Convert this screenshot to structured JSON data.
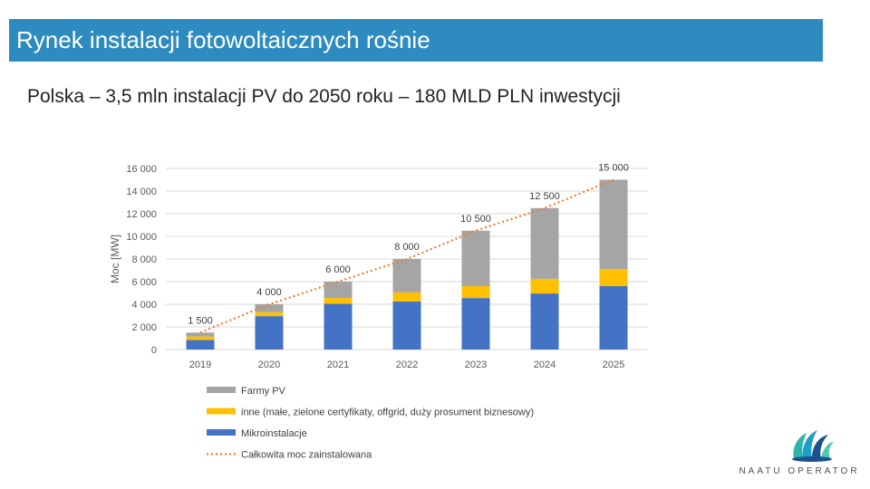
{
  "slide": {
    "title": "Rynek instalacji fotowoltaicznych rośnie",
    "subtitle": "Polska – 3,5 mln instalacji PV do 2050 roku – 180 MLD PLN inwestycji"
  },
  "logo": {
    "text": "NAATU OPERATOR",
    "icon": "feather-headdress-icon"
  },
  "colors": {
    "title_bg": "#2e8bc0",
    "farmy": "#a5a5a5",
    "inne": "#ffc000",
    "mikro": "#4472c4",
    "line": "#ed7d31",
    "grid": "#d9d9d9"
  },
  "chart_data": {
    "type": "bar",
    "stacked": true,
    "categories": [
      "2019",
      "2020",
      "2021",
      "2022",
      "2023",
      "2024",
      "2025"
    ],
    "series": [
      {
        "name": "Mikroinstalacje",
        "key": "mikro",
        "values": [
          850,
          2950,
          4050,
          4250,
          4550,
          4950,
          5600
        ]
      },
      {
        "name": "inne (małe, zielone certyfikaty, offgrid, duży prosument biznesowy)",
        "key": "inne",
        "values": [
          300,
          350,
          500,
          800,
          1050,
          1300,
          1500
        ]
      },
      {
        "name": "Farmy PV",
        "key": "farmy",
        "values": [
          350,
          700,
          1450,
          2950,
          4900,
          6250,
          7900
        ]
      }
    ],
    "line": {
      "name": "Całkowita moc zainstalowana",
      "values": [
        1500,
        4000,
        6000,
        8000,
        10500,
        12500,
        15000
      ]
    },
    "data_labels": [
      "1 500",
      "4 000",
      "6 000",
      "8 000",
      "10 500",
      "12 500",
      "15 000"
    ],
    "ylabel": "Moc [MW]",
    "ylim": [
      0,
      16000
    ],
    "yticks": [
      0,
      2000,
      4000,
      6000,
      8000,
      10000,
      12000,
      14000,
      16000
    ],
    "ytick_labels": [
      "0",
      "2 000",
      "4 000",
      "6 000",
      "8 000",
      "10 000",
      "12 000",
      "14 000",
      "16 000"
    ],
    "legend": [
      {
        "label": "Farmy PV",
        "key": "farmy",
        "kind": "box"
      },
      {
        "label": "inne (małe, zielone certyfikaty, offgrid, duży prosument biznesowy)",
        "key": "inne",
        "kind": "box"
      },
      {
        "label": "Mikroinstalacje",
        "key": "mikro",
        "kind": "box"
      },
      {
        "label": "Całkowita moc zainstalowana",
        "key": "line",
        "kind": "line"
      }
    ],
    "legend_position": "bottom",
    "grid": true
  }
}
